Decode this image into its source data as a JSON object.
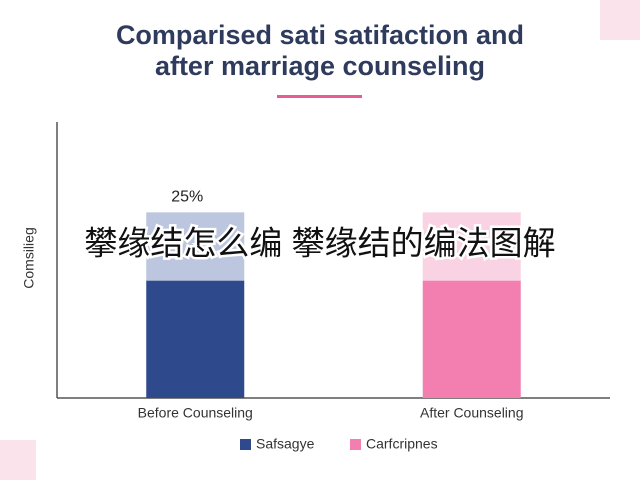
{
  "chart_data": {
    "type": "bar",
    "title": [
      "Comparised sati satifaction and",
      "after marriage counseling"
    ],
    "y_label": "Comsilieg",
    "overlay_text": "攀缘结怎么编 攀缘结的编法图解",
    "categories": [
      "Before Counseling",
      "After Counseling"
    ],
    "stacked": true,
    "series": [
      {
        "name": "Safsagye",
        "color": "#2e4a8c",
        "values": [
          43,
          null
        ]
      },
      {
        "name": "Carfcripnes",
        "color": "#f27fb0",
        "values": [
          null,
          43
        ]
      },
      {
        "colors": [
          "#bcc6de",
          "#f9d3e3"
        ],
        "values": [
          25,
          25
        ],
        "value_labels": [
          "25%",
          null
        ]
      }
    ],
    "ylim": [
      0,
      100
    ]
  }
}
